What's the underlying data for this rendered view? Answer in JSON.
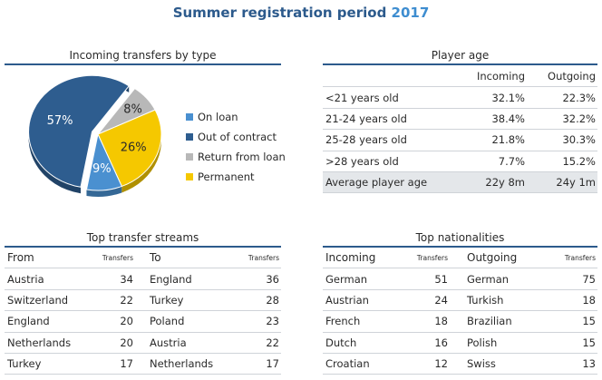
{
  "header": {
    "title": "Summer registration period",
    "year": "2017"
  },
  "colors": {
    "on_loan": "#4a90d0",
    "out_of_contract": "#2e5d8f",
    "return_from_loan": "#b8b8b8",
    "permanent": "#f5c800",
    "title_blue": "#2c5a8c"
  },
  "pie_section": {
    "title": "Incoming transfers by type"
  },
  "chart_data": {
    "type": "pie",
    "title": "Incoming transfers by type",
    "slices": [
      {
        "name": "On loan",
        "value": 9,
        "label": "9%"
      },
      {
        "name": "Out of contract",
        "value": 57,
        "label": "57%"
      },
      {
        "name": "Return from loan",
        "value": 8,
        "label": "8%"
      },
      {
        "name": "Permanent",
        "value": 26,
        "label": "26%"
      }
    ],
    "legend_position": "right"
  },
  "age_table": {
    "title": "Player age",
    "col_incoming": "Incoming",
    "col_outgoing": "Outgoing",
    "rows": [
      {
        "label": "<21 years old",
        "incoming": "32.1%",
        "outgoing": "22.3%"
      },
      {
        "label": "21-24 years old",
        "incoming": "38.4%",
        "outgoing": "32.2%"
      },
      {
        "label": "25-28 years old",
        "incoming": "21.8%",
        "outgoing": "30.3%"
      },
      {
        "label": ">28 years old",
        "incoming": "7.7%",
        "outgoing": "15.2%"
      }
    ],
    "average": {
      "label": "Average player age",
      "incoming": "22y 8m",
      "outgoing": "24y 1m"
    }
  },
  "streams_table": {
    "title": "Top transfer streams",
    "col_from": "From",
    "col_transfers": "Transfers",
    "col_to": "To",
    "col_transfers2": "Transfers",
    "rows": [
      {
        "from": "Austria",
        "from_n": "34",
        "to": "England",
        "to_n": "36"
      },
      {
        "from": "Switzerland",
        "from_n": "22",
        "to": "Turkey",
        "to_n": "28"
      },
      {
        "from": "England",
        "from_n": "20",
        "to": "Poland",
        "to_n": "23"
      },
      {
        "from": "Netherlands",
        "from_n": "20",
        "to": "Austria",
        "to_n": "22"
      },
      {
        "from": "Turkey",
        "from_n": "17",
        "to": "Netherlands",
        "to_n": "17"
      }
    ]
  },
  "nationalities_table": {
    "title": "Top nationalities",
    "col_incoming": "Incoming",
    "col_transfers": "Transfers",
    "col_outgoing": "Outgoing",
    "col_transfers2": "Transfers",
    "rows": [
      {
        "in": "German",
        "in_n": "51",
        "out": "German",
        "out_n": "75"
      },
      {
        "in": "Austrian",
        "in_n": "24",
        "out": "Turkish",
        "out_n": "18"
      },
      {
        "in": "French",
        "in_n": "18",
        "out": "Brazilian",
        "out_n": "15"
      },
      {
        "in": "Dutch",
        "in_n": "16",
        "out": "Polish",
        "out_n": "15"
      },
      {
        "in": "Croatian",
        "in_n": "12",
        "out": "Swiss",
        "out_n": "13"
      }
    ]
  }
}
